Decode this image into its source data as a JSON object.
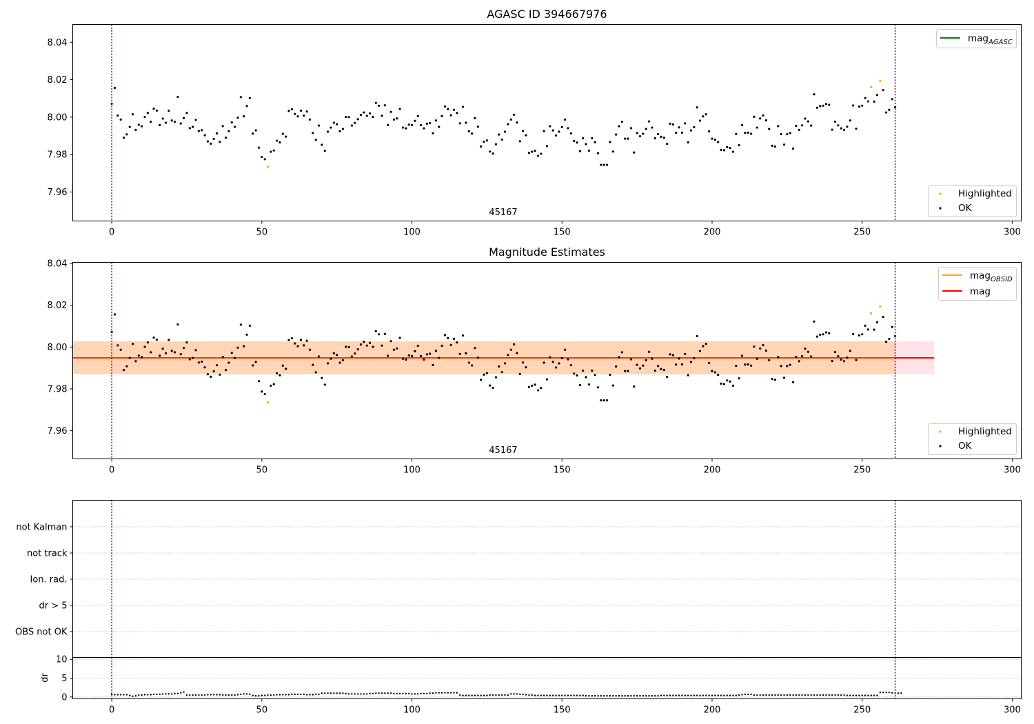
{
  "chart_data": [
    {
      "type": "scatter",
      "title": "AGASC ID 394667976",
      "xlim": [
        -13,
        303
      ],
      "ylim": [
        7.9445,
        8.0495
      ],
      "xticks": [
        0,
        50,
        100,
        150,
        200,
        250,
        300
      ],
      "yticks": [
        7.96,
        7.98,
        8.0,
        8.02,
        8.04
      ],
      "vlines": [
        0,
        261
      ],
      "obsid_label": {
        "text": "45167",
        "x": 130.5
      },
      "legend_lines": [
        {
          "name": "mag_AGASC",
          "main": "mag",
          "sub": "AGASC",
          "color": "#008000"
        }
      ],
      "legend_points": [
        {
          "name": "Highlighted",
          "color": "#FFA500"
        },
        {
          "name": "OK",
          "color": "#000000"
        }
      ],
      "legend_lines_position": "top-right",
      "legend_points_position": "bottom-right",
      "series_ref": "mag_points"
    },
    {
      "type": "scatter",
      "title": "Magnitude Estimates",
      "xlim": [
        -13,
        303
      ],
      "ylim": [
        7.9465,
        8.0405
      ],
      "xticks": [
        0,
        50,
        100,
        150,
        200,
        250,
        300
      ],
      "yticks": [
        7.96,
        7.98,
        8.0,
        8.02,
        8.04
      ],
      "vlines": [
        0,
        261
      ],
      "obsid_label": {
        "text": "45167",
        "x": 130.5
      },
      "mag_line": 7.9948,
      "band": {
        "low": 7.987,
        "high": 8.0027,
        "x_end_obs": 261,
        "x_end_all": 274
      },
      "obsid_line": 7.9948,
      "legend_lines": [
        {
          "name": "mag_OBSID",
          "main": "mag",
          "sub": "OBSID",
          "color": "#FFA500"
        },
        {
          "name": "mag",
          "main": "mag",
          "sub": "",
          "color": "#FF0000"
        }
      ],
      "legend_points": [
        {
          "name": "Highlighted",
          "color": "#FFA500"
        },
        {
          "name": "OK",
          "color": "#000000"
        }
      ],
      "legend_lines_position": "top-right",
      "legend_points_position": "bottom-right",
      "series_ref": "mag_points"
    },
    {
      "type": "scatter",
      "title": "",
      "xlim": [
        -13,
        303
      ],
      "categories": [
        "OBS not OK",
        "dr > 5",
        "Ion. rad.",
        "not track",
        "not Kalman"
      ],
      "vlines": [
        0,
        261
      ],
      "flags": []
    },
    {
      "type": "scatter",
      "title": "",
      "ylabel": "dr",
      "xlim": [
        -13,
        303
      ],
      "ylim": [
        -0.5,
        10.5
      ],
      "xticks": [
        0,
        50,
        100,
        150,
        200,
        250,
        300
      ],
      "yticks": [
        0,
        5,
        10
      ],
      "vlines": [
        0,
        261
      ],
      "dr_values": [
        0.7,
        0.6,
        0.6,
        0.6,
        0.6,
        0.6,
        0.4,
        0.2,
        0.3,
        0.5,
        0.5,
        0.6,
        0.6,
        0.6,
        0.7,
        0.7,
        0.7,
        0.8,
        0.8,
        0.8,
        0.8,
        0.9,
        0.9,
        1.1,
        1.3,
        0.5,
        0.5,
        0.5,
        0.5,
        0.5,
        0.5,
        0.5,
        0.6,
        0.6,
        0.6,
        0.6,
        0.6,
        0.5,
        0.5,
        0.5,
        0.5,
        0.5,
        0.6,
        0.7,
        0.8,
        0.8,
        0.7,
        0.4,
        0.3,
        0.3,
        0.4,
        0.4,
        0.5,
        0.5,
        0.5,
        0.6,
        0.6,
        0.6,
        0.6,
        0.6,
        0.7,
        0.7,
        0.7,
        0.7,
        0.7,
        0.6,
        0.6,
        0.6,
        0.7,
        0.7,
        1.0,
        1.0,
        1.0,
        1.0,
        1.0,
        1.0,
        1.0,
        1.0,
        0.9,
        0.8,
        0.8,
        0.8,
        0.8,
        0.8,
        0.8,
        0.8,
        0.9,
        0.9,
        1.0,
        1.0,
        1.0,
        1.0,
        1.0,
        1.0,
        0.9,
        0.9,
        0.9,
        0.9,
        0.9,
        0.9,
        0.8,
        0.8,
        0.8,
        0.9,
        0.9,
        0.9,
        1.0,
        1.0,
        1.1,
        1.1,
        1.1,
        1.1,
        1.1,
        1.1,
        1.1,
        1.1,
        0.5,
        0.4,
        0.4,
        0.4,
        0.4,
        0.4,
        0.4,
        0.4,
        0.4,
        0.4,
        0.5,
        0.5,
        0.5,
        0.5,
        0.5,
        0.5,
        0.5,
        0.8,
        0.8,
        0.8,
        0.7,
        0.7,
        0.6,
        0.5,
        0.5,
        0.4,
        0.4,
        0.4,
        0.4,
        0.4,
        0.4,
        0.4,
        0.4,
        0.4,
        0.4,
        0.4,
        0.4,
        0.4,
        0.4,
        0.4,
        0.4,
        0.4,
        0.3,
        0.3,
        0.3,
        0.3,
        0.3,
        0.3,
        0.3,
        0.3,
        0.3,
        0.3,
        0.3,
        0.3,
        0.3,
        0.3,
        0.3,
        0.3,
        0.3,
        0.3,
        0.3,
        0.3,
        0.3,
        0.3,
        0.3,
        0.3,
        0.3,
        0.4,
        0.4,
        0.4,
        0.4,
        0.4,
        0.4,
        0.4,
        0.4,
        0.4,
        0.4,
        0.4,
        0.4,
        0.4,
        0.4,
        0.4,
        0.4,
        0.4,
        0.4,
        0.4,
        0.4,
        0.4,
        0.4,
        0.4,
        0.4,
        0.4,
        0.4,
        0.5,
        0.6,
        0.7,
        0.7,
        0.7,
        0.5,
        0.5,
        0.5,
        0.5,
        0.5,
        0.5,
        0.5,
        0.5,
        0.5,
        0.5,
        0.5,
        0.5,
        0.5,
        0.5,
        0.5,
        0.5,
        0.5,
        0.5,
        0.5,
        0.5,
        0.5,
        0.5,
        0.5,
        0.5,
        0.5,
        0.5,
        0.5,
        0.5,
        0.5,
        0.5,
        0.5,
        0.4,
        0.4,
        0.4,
        0.4,
        0.4,
        0.4,
        0.4,
        0.4,
        0.4,
        0.4,
        0.4,
        1.2,
        1.2,
        1.2,
        1.2,
        1.1,
        1.0,
        1.0,
        1.0
      ]
    }
  ],
  "mag_points": [
    8.0072,
    8.0156,
    8.0008,
    7.9987,
    7.989,
    7.9908,
    7.9948,
    8.0015,
    7.9932,
    7.9959,
    7.9951,
    8.0001,
    8.0022,
    7.9975,
    8.0045,
    8.0035,
    7.9958,
    7.9992,
    7.997,
    8.0034,
    7.9982,
    7.9975,
    8.0108,
    7.9966,
    7.9995,
    8.0022,
    7.9941,
    7.9948,
    7.9985,
    7.9926,
    7.993,
    7.9903,
    7.987,
    7.9858,
    7.9884,
    7.9913,
    7.9868,
    7.9952,
    7.989,
    7.9925,
    7.9972,
    7.9948,
    7.9997,
    8.0107,
    8.0004,
    8.0059,
    8.0102,
    7.9912,
    7.9929,
    7.9837,
    7.9787,
    7.9775,
    7.9735,
    7.9815,
    7.9822,
    7.9874,
    7.9865,
    7.9911,
    7.9896,
    8.0033,
    8.0042,
    8.0017,
    8.0004,
    8.0034,
    8.0008,
    8.003,
    7.9987,
    7.9915,
    7.9879,
    7.9955,
    7.9852,
    7.982,
    7.9922,
    7.9944,
    7.997,
    7.9962,
    7.9925,
    7.9937,
    8.0001,
    8.0,
    7.9955,
    7.9969,
    7.9989,
    8.0012,
    8.0025,
    8.0007,
    8.002,
    8.0001,
    8.0076,
    8.0061,
    8.0007,
    8.0063,
    7.9958,
    8.0028,
    7.9987,
    7.9993,
    8.0044,
    7.9944,
    7.994,
    7.996,
    7.9957,
    7.998,
    8.0006,
    7.9957,
    7.994,
    7.9965,
    7.9968,
    7.9914,
    7.9982,
    7.9948,
    8.0006,
    8.0057,
    8.0043,
    8.001,
    8.0039,
    8.0022,
    7.9967,
    8.0055,
    7.997,
    7.9925,
    7.9912,
    7.9995,
    7.9949,
    7.9843,
    7.9868,
    7.9875,
    7.9816,
    7.9805,
    7.9855,
    7.9907,
    7.988,
    7.9922,
    7.9962,
    7.9987,
    8.0013,
    7.9971,
    7.9871,
    7.9926,
    7.9903,
    7.9809,
    7.9815,
    7.982,
    7.9793,
    7.9804,
    7.9925,
    7.9845,
    7.9951,
    7.9929,
    7.9902,
    7.9922,
    7.9947,
    7.9987,
    7.9941,
    7.9913,
    7.9873,
    7.9864,
    7.9818,
    7.9887,
    7.9856,
    7.9821,
    7.9887,
    7.9866,
    7.9807,
    7.9745,
    7.9745,
    7.9745,
    7.9867,
    7.9816,
    7.9907,
    7.9951,
    7.9975,
    7.9885,
    7.9885,
    7.9941,
    7.9811,
    7.9915,
    7.9898,
    7.9911,
    7.9937,
    7.9977,
    7.9944,
    7.9887,
    7.9909,
    7.9895,
    7.989,
    7.9857,
    7.9965,
    7.9961,
    7.9916,
    7.9945,
    7.9917,
    7.9967,
    7.9865,
    7.9929,
    7.9946,
    8.0052,
    7.9981,
    8.0004,
    8.0015,
    7.9924,
    7.9885,
    7.9879,
    7.9867,
    7.9825,
    7.9823,
    7.984,
    7.9835,
    7.9815,
    7.991,
    7.985,
    7.9958,
    7.9916,
    7.9917,
    7.9911,
    8.0002,
    7.9944,
    7.9993,
    8.0009,
    7.9983,
    7.9937,
    7.9847,
    7.9843,
    7.9952,
    7.9909,
    7.9853,
    7.9909,
    7.9915,
    7.9832,
    7.9953,
    7.9932,
    7.9956,
    7.9992,
    7.9977,
    7.9955,
    8.0122,
    8.005,
    8.0059,
    8.0061,
    8.007,
    8.0066,
    7.9933,
    7.9976,
    7.9956,
    7.994,
    7.9932,
    7.9949,
    7.9982,
    8.0062,
    7.9938,
    8.0056,
    8.0061,
    8.0102,
    8.0084,
    8.0161,
    8.0083,
    8.0118,
    8.0193,
    8.0144,
    8.0025,
    8.0039,
    8.0096,
    8.0053
  ],
  "highlighted_indices": [
    52,
    253,
    256
  ]
}
